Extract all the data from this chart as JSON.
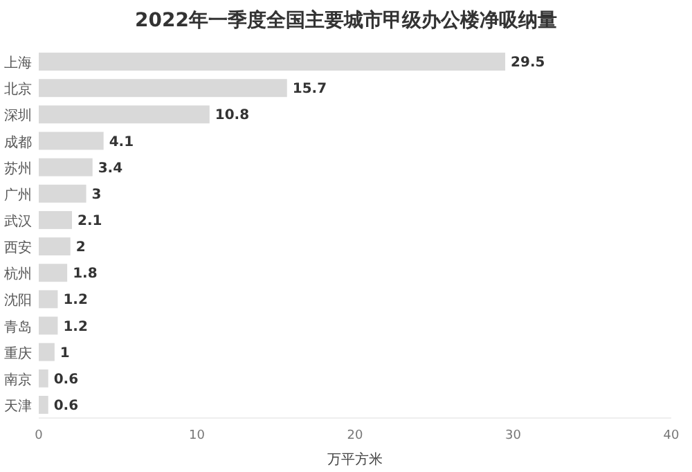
{
  "chart_data": {
    "type": "bar",
    "orientation": "horizontal",
    "title": "2022年一季度全国主要城市甲级办公楼净吸纳量",
    "xlabel": "万平方米",
    "categories": [
      "上海",
      "北京",
      "深圳",
      "成都",
      "苏州",
      "广州",
      "武汉",
      "西安",
      "杭州",
      "沈阳",
      "青岛",
      "重庆",
      "南京",
      "天津"
    ],
    "values": [
      29.5,
      15.7,
      10.8,
      4.1,
      3.4,
      3,
      2.1,
      2,
      1.8,
      1.2,
      1.2,
      1,
      0.6,
      0.6
    ],
    "color": "#d9d9d9",
    "xlim": [
      0,
      40
    ],
    "xticks": [
      0,
      10,
      20,
      30,
      40
    ],
    "data_labels": true
  }
}
